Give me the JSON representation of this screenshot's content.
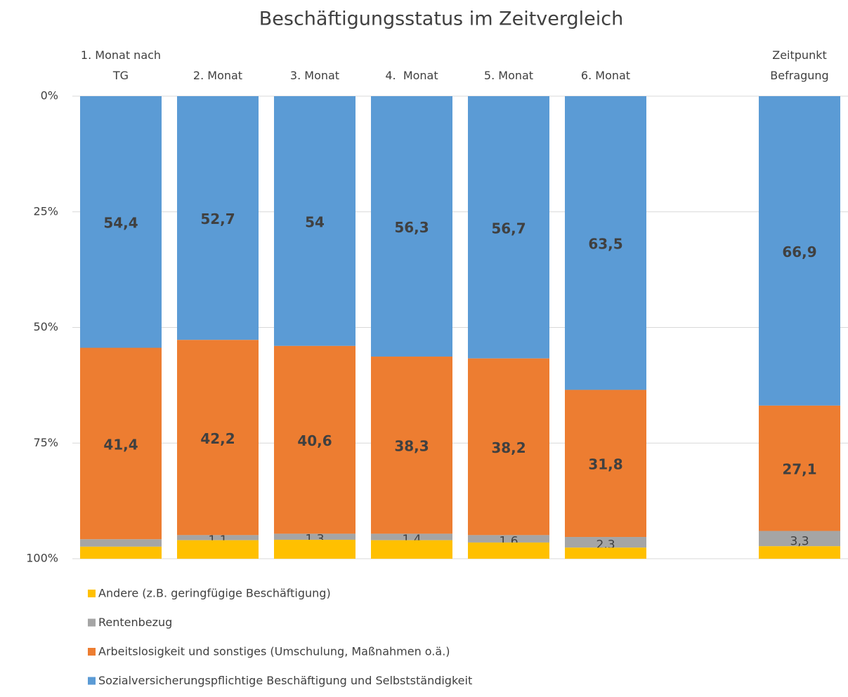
{
  "chart_data": {
    "type": "stacked_bar",
    "title": "Beschäftigungsstatus im Zeitvergleich",
    "categories": [
      "1. Monat nach\nTG",
      "2. Monat",
      "3. Monat",
      "4.  Monat",
      "5. Monat",
      "6. Monat",
      null,
      "Zeitpunkt\nBefragung"
    ],
    "series": [
      {
        "name": "Andere (z.B. geringfügige Beschäftigung)",
        "color": "#ffc000",
        "values": [
          2.6,
          4.0,
          4.1,
          4.0,
          3.5,
          2.4,
          null,
          2.7
        ]
      },
      {
        "name": "Rentenbezug",
        "color": "#a5a5a5",
        "values": [
          1.6,
          1.1,
          1.3,
          1.4,
          1.6,
          2.3,
          null,
          3.3
        ],
        "value_labels": [
          null,
          "1,1",
          "1,3",
          "1,4",
          "1,6",
          "2,3",
          null,
          "3,3"
        ]
      },
      {
        "name": "Arbeitslosigkeit und sonstiges (Umschulung, Maßnahmen o.ä.)",
        "color": "#ed7d31",
        "values": [
          41.4,
          42.2,
          40.6,
          38.3,
          38.2,
          31.8,
          null,
          27.1
        ],
        "value_labels": [
          "41,4",
          "42,2",
          "40,6",
          "38,3",
          "38,2",
          "31,8",
          null,
          "27,1"
        ]
      },
      {
        "name": "Sozialversicherungspflichtige Beschäftigung und Selbstständigkeit",
        "color": "#5b9bd5",
        "values": [
          54.4,
          52.7,
          54,
          56.3,
          56.7,
          63.5,
          null,
          66.9
        ],
        "value_labels": [
          "54,4",
          "52,7",
          "54",
          "56,3",
          "56,7",
          "63,5",
          null,
          "66,9"
        ]
      }
    ],
    "ylim": [
      0,
      100
    ],
    "y_reversed": true,
    "yticks": [
      {
        "value": 0,
        "label": "0%"
      },
      {
        "value": 25,
        "label": "25%"
      },
      {
        "value": 50,
        "label": "50%"
      },
      {
        "value": 75,
        "label": "75%"
      },
      {
        "value": 100,
        "label": "100%"
      }
    ],
    "grid": true
  }
}
